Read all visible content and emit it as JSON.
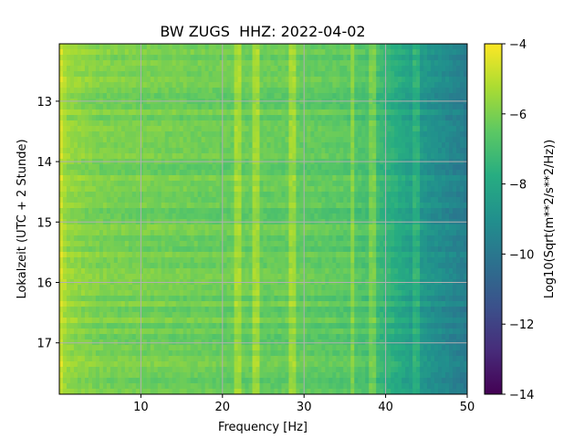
{
  "chart_data": {
    "type": "heatmap",
    "title": "BW ZUGS  HHZ: 2022-04-02",
    "xlabel": "Frequency [Hz]",
    "ylabel": "Lokalzeit (UTC + 2 Stunde)",
    "colorbar_label": "Log10(Sqrt(m**2/s**2/Hz))",
    "colormap": "viridis",
    "xlim": [
      0,
      50
    ],
    "ylim": [
      17.85,
      12.05
    ],
    "y_inverted": true,
    "clim": [
      -14,
      -4
    ],
    "grid": true,
    "x_ticks": [
      10,
      20,
      30,
      40,
      50
    ],
    "y_ticks": [
      13,
      14,
      15,
      16,
      17
    ],
    "colorbar_ticks": [
      -4,
      -6,
      -8,
      -10,
      -12,
      -14
    ],
    "profile_freq_hz": [
      0,
      1,
      5,
      10,
      20,
      30,
      35,
      38,
      40,
      42,
      44,
      46,
      48,
      50
    ],
    "profile_level": [
      -4.6,
      -5.6,
      -6.0,
      -6.1,
      -6.3,
      -6.4,
      -6.6,
      -6.9,
      -7.4,
      -8.0,
      -8.6,
      -9.0,
      -9.4,
      -9.8
    ],
    "bright_lines_hz": [
      21.8,
      24.0,
      28.5,
      36.0,
      38.5,
      43.8
    ],
    "colors": {
      "grid": "#b0b0b0",
      "viridis": [
        "#440154",
        "#472c7a",
        "#3b518b",
        "#2c718e",
        "#21908d",
        "#27ad81",
        "#5cc863",
        "#aadc32",
        "#fde725"
      ]
    }
  }
}
